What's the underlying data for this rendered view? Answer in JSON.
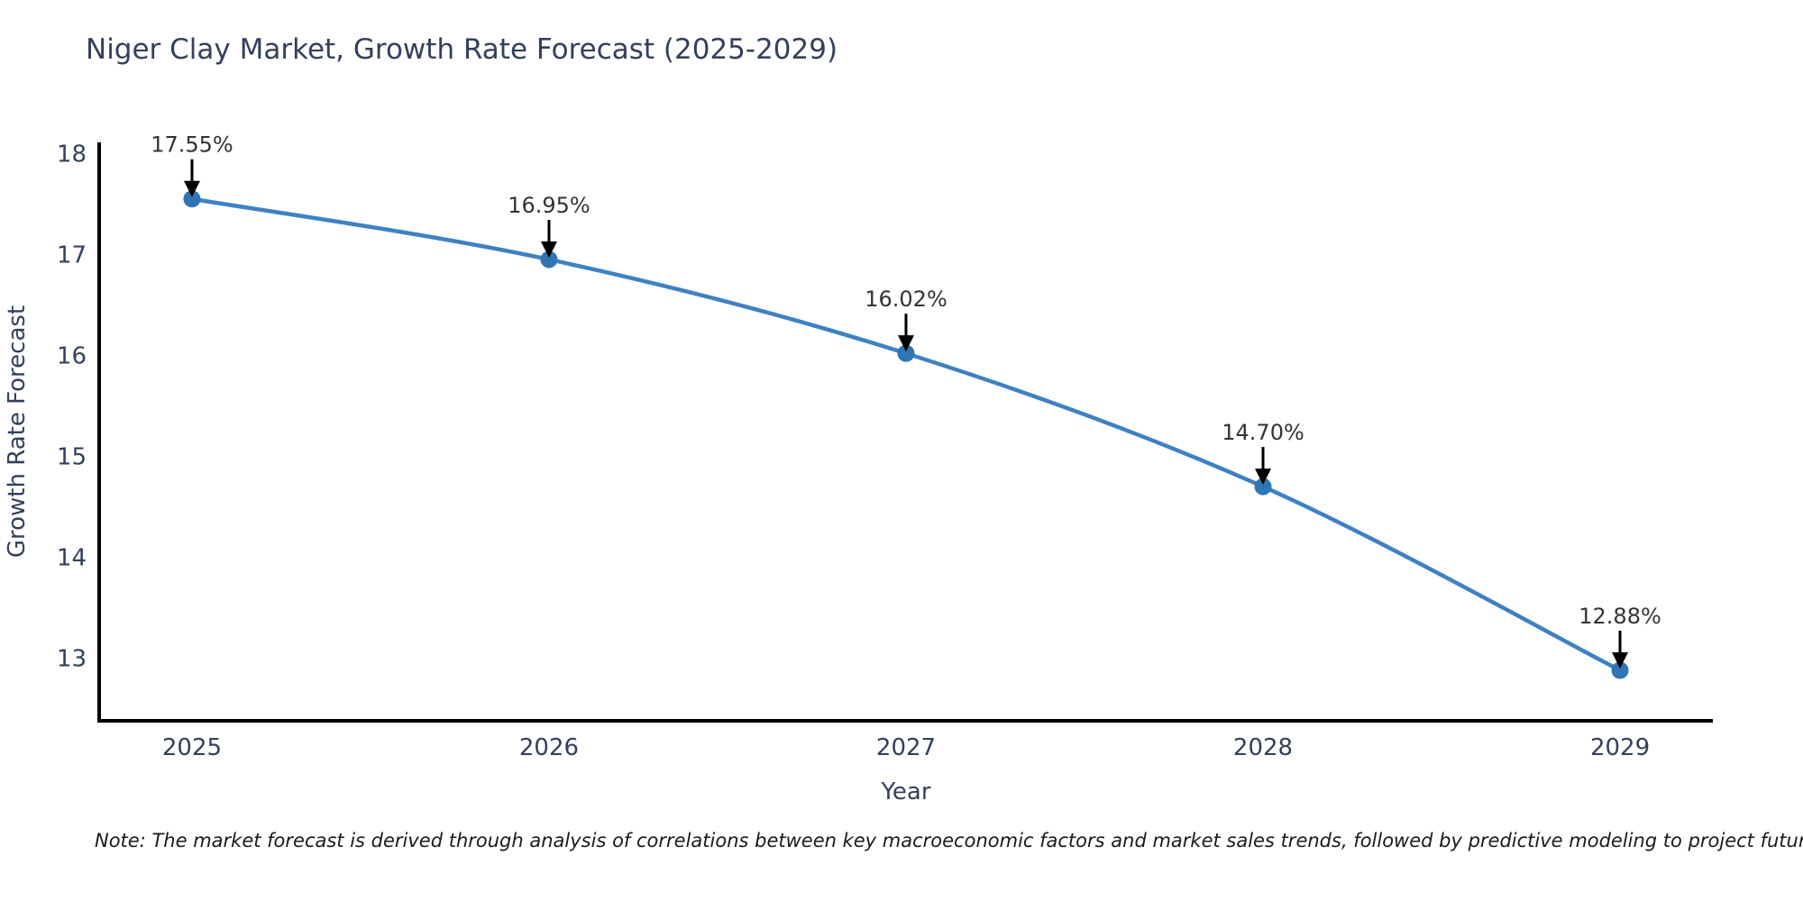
{
  "title": "Niger Clay Market, Growth Rate Forecast (2025-2029)",
  "note": "Note: The market forecast is derived through analysis of correlations between key macroeconomic factors and market sales trends, followed by predictive modeling to project future sales",
  "chart_data": {
    "type": "line",
    "title": "Niger Clay Market, Growth Rate Forecast (2025-2029)",
    "xlabel": "Year",
    "ylabel": "Growth Rate Forecast",
    "x": [
      2025,
      2026,
      2027,
      2028,
      2029
    ],
    "values": [
      17.55,
      16.95,
      16.02,
      14.7,
      12.88
    ],
    "point_labels": [
      "17.55%",
      "16.95%",
      "16.02%",
      "14.70%",
      "12.88%"
    ],
    "xticks": [
      "2025",
      "2026",
      "2027",
      "2028",
      "2029"
    ],
    "yticks": [
      13,
      14,
      15,
      16,
      17,
      18
    ],
    "xlim": [
      2024.74,
      2029.26
    ],
    "ylim": [
      12.38,
      18.11
    ],
    "grid": false,
    "legend": "none",
    "colors": {
      "line": "#3e81c3",
      "marker": "#2f74b5",
      "axis": "#000000",
      "tick_text": "#33405c",
      "title_text": "#333f5c",
      "annotation_text": "#333333",
      "annotation_arrow": "#000000",
      "note_text": "#1a1a1a"
    }
  }
}
